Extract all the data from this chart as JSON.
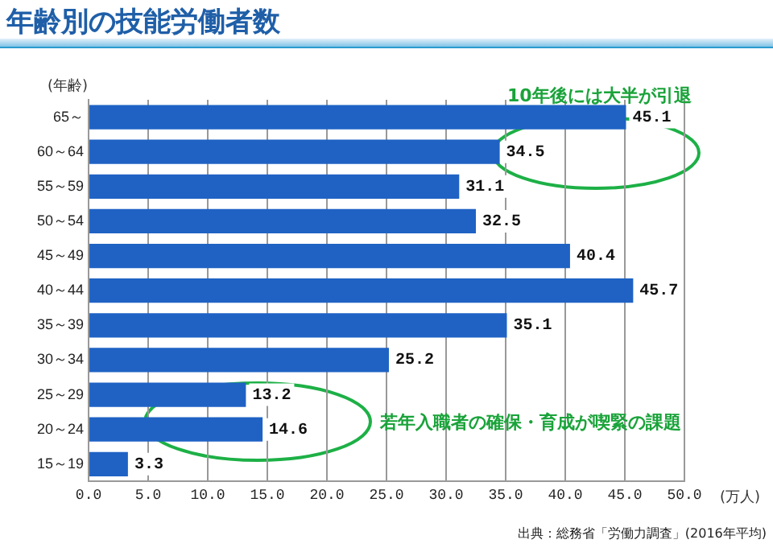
{
  "chart_data": {
    "type": "bar",
    "orientation": "horizontal",
    "title": "年齢別の技能労働者数",
    "ylabel": "(年齢)",
    "xlabel": "(万人)",
    "categories": [
      "65～",
      "60～64",
      "55～59",
      "50～54",
      "45～49",
      "40～44",
      "35～39",
      "30～34",
      "25～29",
      "20～24",
      "15～19"
    ],
    "values": [
      45.1,
      34.5,
      31.1,
      32.5,
      40.4,
      45.7,
      35.1,
      25.2,
      13.2,
      14.6,
      3.3
    ],
    "color": "#1f62c4",
    "data_labels": true,
    "xlim": [
      0,
      50
    ],
    "xticks": [
      {
        "value": 0,
        "label": "0.0"
      },
      {
        "value": 5,
        "label": "5.0"
      },
      {
        "value": 10,
        "label": "10.0"
      },
      {
        "value": 15,
        "label": "15.0"
      },
      {
        "value": 20,
        "label": "20.0"
      },
      {
        "value": 25,
        "label": "25.0"
      },
      {
        "value": 30,
        "label": "30.0"
      },
      {
        "value": 35,
        "label": "35.0"
      },
      {
        "value": 40,
        "label": "40.0"
      },
      {
        "value": 45,
        "label": "45.0"
      },
      {
        "value": 50,
        "label": "50.0"
      }
    ],
    "grid": "x",
    "legend": false,
    "annotations": [
      "10年後には大半が引退",
      "若年入職者の確保・育成が喫緊の課題",
      "出典：総務省「労働力調査」(2016年平均)"
    ]
  }
}
